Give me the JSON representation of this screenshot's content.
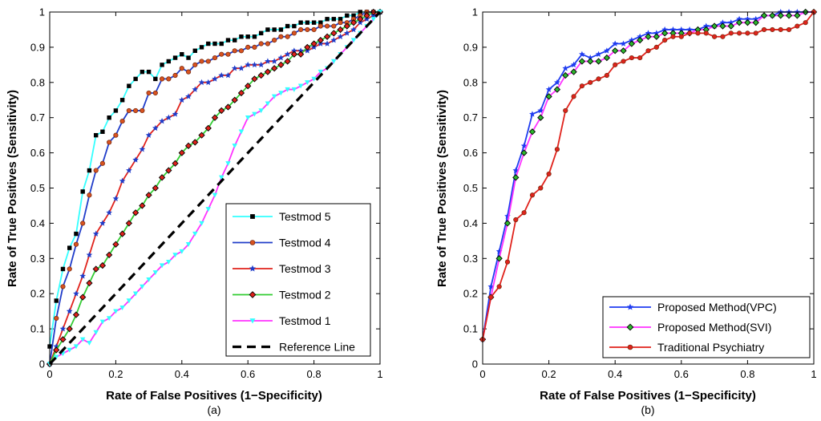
{
  "chart_data": [
    {
      "type": "line",
      "caption": "(a)",
      "xlabel": "Rate of False Positives (1−Specificity)",
      "ylabel": "Rate of True Positives (Sensitivity)",
      "xlim": [
        0,
        1
      ],
      "ylim": [
        0,
        1
      ],
      "xticks": [
        "0",
        "0.2",
        "0.4",
        "0.6",
        "0.8",
        "1"
      ],
      "yticks": [
        "0",
        "0.1",
        "0.2",
        "0.3",
        "0.4",
        "0.5",
        "0.6",
        "0.7",
        "0.8",
        "0.9",
        "1"
      ],
      "legend_position": "bottom-right",
      "series": [
        {
          "name": "Testmod 5",
          "color": "#33ffff",
          "marker": "square",
          "marker_color": "#000000",
          "x": [
            0,
            0.02,
            0.04,
            0.06,
            0.08,
            0.1,
            0.12,
            0.14,
            0.16,
            0.18,
            0.2,
            0.22,
            0.24,
            0.26,
            0.28,
            0.3,
            0.32,
            0.34,
            0.36,
            0.38,
            0.4,
            0.42,
            0.44,
            0.46,
            0.48,
            0.5,
            0.52,
            0.54,
            0.56,
            0.58,
            0.6,
            0.62,
            0.64,
            0.66,
            0.68,
            0.7,
            0.72,
            0.74,
            0.76,
            0.78,
            0.8,
            0.82,
            0.84,
            0.86,
            0.88,
            0.9,
            0.92,
            0.94,
            0.96,
            0.98,
            1
          ],
          "y": [
            0.05,
            0.18,
            0.27,
            0.33,
            0.37,
            0.49,
            0.55,
            0.65,
            0.66,
            0.7,
            0.72,
            0.75,
            0.79,
            0.81,
            0.83,
            0.83,
            0.81,
            0.85,
            0.86,
            0.87,
            0.88,
            0.87,
            0.89,
            0.9,
            0.91,
            0.91,
            0.91,
            0.92,
            0.92,
            0.93,
            0.93,
            0.93,
            0.94,
            0.95,
            0.95,
            0.95,
            0.96,
            0.96,
            0.97,
            0.97,
            0.97,
            0.97,
            0.98,
            0.98,
            0.98,
            0.99,
            0.99,
            1,
            1,
            1,
            1
          ]
        },
        {
          "name": "Testmod 4",
          "color": "#1f3cc9",
          "marker": "circle",
          "marker_color": "#d9531f",
          "x": [
            0,
            0.02,
            0.04,
            0.06,
            0.08,
            0.1,
            0.12,
            0.14,
            0.16,
            0.18,
            0.2,
            0.22,
            0.24,
            0.26,
            0.28,
            0.3,
            0.32,
            0.34,
            0.36,
            0.38,
            0.4,
            0.42,
            0.44,
            0.46,
            0.48,
            0.5,
            0.52,
            0.54,
            0.56,
            0.58,
            0.6,
            0.62,
            0.64,
            0.66,
            0.68,
            0.7,
            0.72,
            0.74,
            0.76,
            0.78,
            0.8,
            0.82,
            0.84,
            0.86,
            0.88,
            0.9,
            0.92,
            0.94,
            0.96,
            0.98,
            1
          ],
          "y": [
            0,
            0.13,
            0.22,
            0.27,
            0.34,
            0.4,
            0.48,
            0.55,
            0.57,
            0.63,
            0.65,
            0.69,
            0.72,
            0.72,
            0.72,
            0.77,
            0.77,
            0.81,
            0.81,
            0.82,
            0.84,
            0.83,
            0.85,
            0.86,
            0.86,
            0.87,
            0.88,
            0.88,
            0.89,
            0.89,
            0.9,
            0.9,
            0.91,
            0.91,
            0.92,
            0.93,
            0.93,
            0.94,
            0.95,
            0.95,
            0.95,
            0.96,
            0.96,
            0.96,
            0.97,
            0.97,
            0.98,
            0.99,
            1,
            1,
            1
          ]
        },
        {
          "name": "Testmod 3",
          "color": "#e0221b",
          "marker": "star",
          "marker_color": "#1f3cc9",
          "x": [
            0,
            0.02,
            0.04,
            0.06,
            0.08,
            0.1,
            0.12,
            0.14,
            0.16,
            0.18,
            0.2,
            0.22,
            0.24,
            0.26,
            0.28,
            0.3,
            0.32,
            0.34,
            0.36,
            0.38,
            0.4,
            0.42,
            0.44,
            0.46,
            0.48,
            0.5,
            0.52,
            0.54,
            0.56,
            0.58,
            0.6,
            0.62,
            0.64,
            0.66,
            0.68,
            0.7,
            0.72,
            0.74,
            0.76,
            0.78,
            0.8,
            0.82,
            0.84,
            0.86,
            0.88,
            0.9,
            0.92,
            0.94,
            0.96,
            0.98,
            1
          ],
          "y": [
            0,
            0.05,
            0.1,
            0.15,
            0.2,
            0.25,
            0.31,
            0.37,
            0.4,
            0.43,
            0.47,
            0.52,
            0.55,
            0.58,
            0.61,
            0.65,
            0.67,
            0.69,
            0.7,
            0.71,
            0.75,
            0.76,
            0.78,
            0.8,
            0.8,
            0.81,
            0.82,
            0.82,
            0.84,
            0.84,
            0.85,
            0.85,
            0.85,
            0.86,
            0.86,
            0.87,
            0.88,
            0.89,
            0.89,
            0.89,
            0.9,
            0.91,
            0.91,
            0.92,
            0.93,
            0.94,
            0.95,
            0.97,
            0.98,
            0.99,
            1
          ]
        },
        {
          "name": "Testmod 2",
          "color": "#33cc33",
          "marker": "diamond",
          "marker_color": "#e0221b",
          "x": [
            0,
            0.02,
            0.04,
            0.06,
            0.08,
            0.1,
            0.12,
            0.14,
            0.16,
            0.18,
            0.2,
            0.22,
            0.24,
            0.26,
            0.28,
            0.3,
            0.32,
            0.34,
            0.36,
            0.38,
            0.4,
            0.42,
            0.44,
            0.46,
            0.48,
            0.5,
            0.52,
            0.54,
            0.56,
            0.58,
            0.6,
            0.62,
            0.64,
            0.66,
            0.68,
            0.7,
            0.72,
            0.74,
            0.76,
            0.78,
            0.8,
            0.82,
            0.84,
            0.86,
            0.88,
            0.9,
            0.92,
            0.94,
            0.96,
            0.98,
            1
          ],
          "y": [
            0,
            0.04,
            0.07,
            0.1,
            0.14,
            0.19,
            0.23,
            0.27,
            0.28,
            0.31,
            0.34,
            0.37,
            0.4,
            0.43,
            0.45,
            0.48,
            0.5,
            0.53,
            0.55,
            0.57,
            0.6,
            0.62,
            0.63,
            0.65,
            0.67,
            0.7,
            0.72,
            0.73,
            0.75,
            0.77,
            0.79,
            0.81,
            0.82,
            0.83,
            0.84,
            0.85,
            0.86,
            0.88,
            0.88,
            0.9,
            0.91,
            0.92,
            0.93,
            0.94,
            0.95,
            0.96,
            0.97,
            0.98,
            0.99,
            1,
            1
          ]
        },
        {
          "name": "Testmod 1",
          "color": "#ff33ff",
          "marker": "triangle-down",
          "marker_color": "#33ffff",
          "x": [
            0,
            0.02,
            0.04,
            0.06,
            0.08,
            0.1,
            0.12,
            0.14,
            0.16,
            0.18,
            0.2,
            0.22,
            0.24,
            0.26,
            0.28,
            0.3,
            0.32,
            0.34,
            0.36,
            0.38,
            0.4,
            0.42,
            0.44,
            0.46,
            0.48,
            0.5,
            0.52,
            0.54,
            0.56,
            0.58,
            0.6,
            0.62,
            0.64,
            0.66,
            0.68,
            0.7,
            0.72,
            0.74,
            0.76,
            0.78,
            0.8,
            0.82,
            0.84,
            0.86,
            0.88,
            0.9,
            0.92,
            0.94,
            0.96,
            0.98,
            1
          ],
          "y": [
            0,
            0.02,
            0.03,
            0.04,
            0.05,
            0.07,
            0.06,
            0.09,
            0.12,
            0.13,
            0.15,
            0.16,
            0.18,
            0.2,
            0.22,
            0.24,
            0.26,
            0.28,
            0.29,
            0.31,
            0.32,
            0.34,
            0.37,
            0.4,
            0.44,
            0.48,
            0.53,
            0.57,
            0.62,
            0.66,
            0.7,
            0.71,
            0.72,
            0.74,
            0.76,
            0.77,
            0.78,
            0.78,
            0.79,
            0.8,
            0.81,
            0.83,
            0.84,
            0.86,
            0.88,
            0.9,
            0.92,
            0.94,
            0.96,
            0.98,
            1
          ]
        },
        {
          "name": "Reference Line",
          "color": "#000000",
          "marker": "none",
          "dashed": true,
          "x": [
            0,
            1
          ],
          "y": [
            0,
            1
          ]
        }
      ]
    },
    {
      "type": "line",
      "caption": "(b)",
      "xlabel": "Rate of False Positives (1−Specificity)",
      "ylabel": "Rate of True Positives (Sensitivity)",
      "xlim": [
        0,
        1
      ],
      "ylim": [
        0,
        1
      ],
      "xticks": [
        "0",
        "0.2",
        "0.4",
        "0.6",
        "0.8",
        "1"
      ],
      "yticks": [
        "0",
        "0.1",
        "0.2",
        "0.3",
        "0.4",
        "0.5",
        "0.6",
        "0.7",
        "0.8",
        "0.9",
        "1"
      ],
      "legend_position": "bottom-right",
      "series": [
        {
          "name": "Proposed Method(VPC)",
          "color": "#1f3cf0",
          "marker": "star",
          "marker_color": "#1f3cf0",
          "x": [
            0,
            0.025,
            0.05,
            0.075,
            0.1,
            0.125,
            0.15,
            0.175,
            0.2,
            0.225,
            0.25,
            0.275,
            0.3,
            0.325,
            0.35,
            0.375,
            0.4,
            0.425,
            0.45,
            0.475,
            0.5,
            0.525,
            0.55,
            0.575,
            0.6,
            0.625,
            0.65,
            0.675,
            0.7,
            0.725,
            0.75,
            0.775,
            0.8,
            0.825,
            0.85,
            0.875,
            0.9,
            0.925,
            0.95,
            0.975,
            1
          ],
          "y": [
            0.07,
            0.22,
            0.32,
            0.42,
            0.55,
            0.62,
            0.71,
            0.72,
            0.78,
            0.8,
            0.84,
            0.85,
            0.88,
            0.87,
            0.88,
            0.89,
            0.91,
            0.91,
            0.92,
            0.93,
            0.94,
            0.94,
            0.95,
            0.95,
            0.95,
            0.95,
            0.95,
            0.96,
            0.96,
            0.97,
            0.97,
            0.98,
            0.98,
            0.98,
            0.99,
            0.99,
            1,
            1,
            1,
            1,
            1
          ]
        },
        {
          "name": "Proposed Method(SVI)",
          "color": "#ff33ff",
          "marker": "diamond",
          "marker_color": "#2db82d",
          "x": [
            0,
            0.025,
            0.05,
            0.075,
            0.1,
            0.125,
            0.15,
            0.175,
            0.2,
            0.225,
            0.25,
            0.275,
            0.3,
            0.325,
            0.35,
            0.375,
            0.4,
            0.425,
            0.45,
            0.475,
            0.5,
            0.525,
            0.55,
            0.575,
            0.6,
            0.625,
            0.65,
            0.675,
            0.7,
            0.725,
            0.75,
            0.775,
            0.8,
            0.825,
            0.85,
            0.875,
            0.9,
            0.925,
            0.95,
            0.975,
            1
          ],
          "y": [
            0.07,
            0.19,
            0.3,
            0.4,
            0.53,
            0.6,
            0.66,
            0.7,
            0.76,
            0.78,
            0.82,
            0.83,
            0.86,
            0.86,
            0.86,
            0.87,
            0.89,
            0.89,
            0.91,
            0.92,
            0.93,
            0.93,
            0.94,
            0.94,
            0.94,
            0.94,
            0.95,
            0.95,
            0.96,
            0.96,
            0.96,
            0.97,
            0.97,
            0.97,
            0.99,
            0.99,
            0.99,
            0.99,
            0.99,
            1,
            1
          ]
        },
        {
          "name": "Traditional Psychiatry",
          "color": "#e0221b",
          "marker": "circle",
          "marker_color": "#e0221b",
          "x": [
            0,
            0.025,
            0.05,
            0.075,
            0.1,
            0.125,
            0.15,
            0.175,
            0.2,
            0.225,
            0.25,
            0.275,
            0.3,
            0.325,
            0.35,
            0.375,
            0.4,
            0.425,
            0.45,
            0.475,
            0.5,
            0.525,
            0.55,
            0.575,
            0.6,
            0.625,
            0.65,
            0.675,
            0.7,
            0.725,
            0.75,
            0.775,
            0.8,
            0.825,
            0.85,
            0.875,
            0.9,
            0.925,
            0.95,
            0.975,
            1
          ],
          "y": [
            0.07,
            0.19,
            0.22,
            0.29,
            0.41,
            0.43,
            0.48,
            0.5,
            0.54,
            0.61,
            0.72,
            0.76,
            0.79,
            0.8,
            0.81,
            0.82,
            0.85,
            0.86,
            0.87,
            0.87,
            0.89,
            0.9,
            0.92,
            0.93,
            0.93,
            0.94,
            0.94,
            0.94,
            0.93,
            0.93,
            0.94,
            0.94,
            0.94,
            0.94,
            0.95,
            0.95,
            0.95,
            0.95,
            0.96,
            0.97,
            1
          ]
        }
      ]
    }
  ]
}
